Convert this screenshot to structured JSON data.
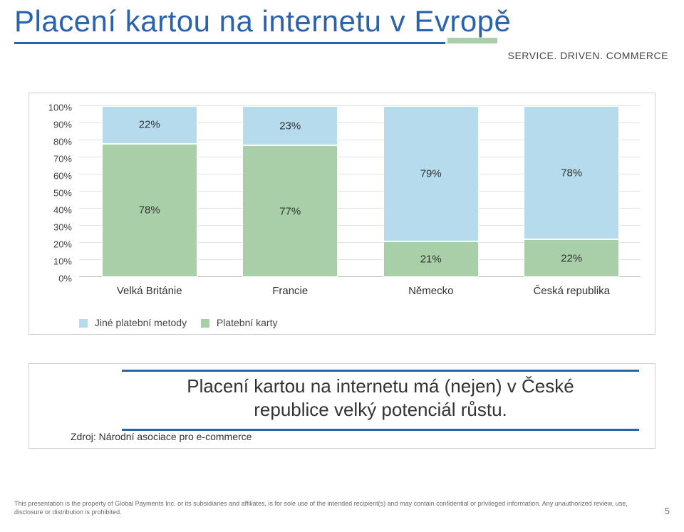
{
  "title": "Placení kartou na internetu v Evropě",
  "tagline": "SERVICE. DRIVEN. COMMERCE",
  "title_underline_color": "#2a63ad",
  "title_accent_color": "#a9cfa8",
  "chart": {
    "type": "stacked_bar_percent",
    "background_color": "#ffffff",
    "frame_border_color": "#cfcfcf",
    "grid_color": "#e2e2e2",
    "axis_color": "#bfbfbf",
    "categories": [
      "Velká Británie",
      "Francie",
      "Německo",
      "Česká republika"
    ],
    "series": [
      {
        "key": "jine",
        "name": "Jiné platební metody",
        "color": "#b5dbed",
        "values": [
          22,
          23,
          79,
          78
        ]
      },
      {
        "key": "karty",
        "name": "Platební karty",
        "color": "#a9cfa8",
        "values": [
          78,
          77,
          21,
          22
        ]
      }
    ],
    "stack_order_bottom_to_top": [
      "karty",
      "jine"
    ],
    "ylim": [
      0,
      100
    ],
    "ytick_step": 10,
    "y_tick_labels": [
      "0%",
      "10%",
      "20%",
      "30%",
      "40%",
      "50%",
      "60%",
      "70%",
      "80%",
      "90%",
      "100%"
    ],
    "bar_width_ratio": 0.68,
    "label_fontsize": 15,
    "tick_fontsize": 13,
    "legend_fontsize": 14
  },
  "callout": {
    "text_line1": "Placení kartou na internetu má (nejen) v České",
    "text_line2": "republice velký potenciál růstu.",
    "border_color": "#2a63ad",
    "source_label": "Zdroj: Národní asociace pro e-commerce"
  },
  "footer": {
    "text": "This presentation is the property of Global Payments Inc. or its subsidiaries and affiliates, is for sole use of the intended recipient(s) and may contain confidential or privileged information. Any unauthorized review, use, disclosure or distribution is prohibited.",
    "page_number": "5"
  }
}
